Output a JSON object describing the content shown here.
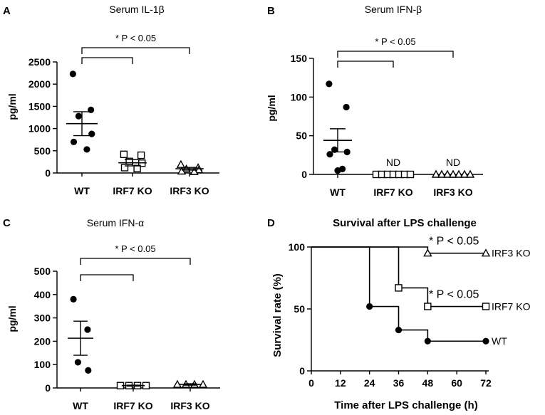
{
  "chart_data": [
    {
      "panel": "A",
      "type": "scatter",
      "title": "Serum IL-1β",
      "ylabel": "pg/ml",
      "ylim": [
        0,
        2500
      ],
      "yticks": [
        0,
        500,
        1000,
        1500,
        2000,
        2500
      ],
      "categories": [
        "WT",
        "IRF7 KO",
        "IRF3 KO"
      ],
      "markers": [
        "filled-circle",
        "open-square",
        "open-triangle"
      ],
      "points": [
        [
          2230,
          1420,
          1280,
          880,
          700,
          530
        ],
        [
          420,
          400,
          260,
          220,
          120,
          100
        ],
        [
          190,
          120,
          90,
          70,
          40,
          30
        ]
      ],
      "mean": [
        1110,
        230,
        95
      ],
      "sem": [
        270,
        70,
        30
      ],
      "annotations": [
        {
          "text": "* P < 0.05",
          "from": 0,
          "to": 2,
          "level": "upper"
        },
        {
          "text": "",
          "from": 0,
          "to": 1,
          "level": "lower"
        }
      ]
    },
    {
      "panel": "B",
      "type": "scatter",
      "title": "Serum IFN-β",
      "ylabel": "pg/ml",
      "ylim": [
        0,
        150
      ],
      "yticks": [
        0,
        50,
        100,
        150
      ],
      "categories": [
        "WT",
        "IRF7 KO",
        "IRF3 KO"
      ],
      "markers": [
        "filled-circle",
        "open-square",
        "open-triangle"
      ],
      "points": [
        [
          117,
          87,
          32,
          29,
          26,
          7,
          5
        ],
        [
          0,
          0,
          0,
          0,
          0,
          0,
          0
        ],
        [
          0,
          0,
          0,
          0,
          0,
          0,
          0
        ]
      ],
      "mean": [
        44,
        null,
        null
      ],
      "sem": [
        15,
        null,
        null
      ],
      "value_labels": [
        "",
        "ND",
        "ND"
      ],
      "annotations": [
        {
          "text": "* P < 0.05",
          "from": 0,
          "to": 2,
          "level": "upper"
        },
        {
          "text": "",
          "from": 0,
          "to": 1,
          "level": "lower"
        }
      ]
    },
    {
      "panel": "C",
      "type": "scatter",
      "title": "Serum IFN-α",
      "ylabel": "pg/ml",
      "ylim": [
        0,
        500
      ],
      "yticks": [
        0,
        100,
        200,
        300,
        400,
        500
      ],
      "categories": [
        "WT",
        "IRF7 KO",
        "IRF3 KO"
      ],
      "markers": [
        "filled-circle",
        "open-square",
        "open-triangle"
      ],
      "points": [
        [
          380,
          250,
          110,
          75
        ],
        [
          10,
          10,
          10,
          10
        ],
        [
          15,
          15,
          15,
          15
        ]
      ],
      "mean": [
        213,
        10,
        15
      ],
      "sem": [
        73,
        2,
        3
      ],
      "annotations": [
        {
          "text": "* P < 0.05",
          "from": 0,
          "to": 2,
          "level": "upper"
        },
        {
          "text": "",
          "from": 0,
          "to": 1,
          "level": "lower"
        }
      ]
    },
    {
      "panel": "D",
      "type": "line",
      "title": "Survival after LPS challenge",
      "xlabel": "Time after LPS challenge (h)",
      "ylabel": "Survival rate (%)",
      "xlim": [
        0,
        72
      ],
      "ylim": [
        0,
        100
      ],
      "xticks": [
        0,
        12,
        24,
        36,
        48,
        60,
        72
      ],
      "yticks": [
        0,
        50,
        100
      ],
      "series": [
        {
          "name": "IRF3 KO",
          "marker": "open-triangle",
          "steps": [
            [
              0,
              100
            ],
            [
              48,
              95
            ],
            [
              72,
              95
            ]
          ]
        },
        {
          "name": "IRF7 KO",
          "marker": "open-square",
          "steps": [
            [
              0,
              100
            ],
            [
              36,
              67
            ],
            [
              48,
              52
            ],
            [
              72,
              52
            ]
          ]
        },
        {
          "name": "WT",
          "marker": "filled-circle",
          "steps": [
            [
              0,
              100
            ],
            [
              24,
              52
            ],
            [
              36,
              33
            ],
            [
              48,
              24
            ],
            [
              72,
              24
            ]
          ]
        }
      ],
      "annotations": [
        {
          "text": "* P < 0.05",
          "series": "IRF3 KO"
        },
        {
          "text": "* P < 0.05",
          "series": "IRF7 KO"
        }
      ]
    }
  ],
  "panel_labels": [
    "A",
    "B",
    "C",
    "D"
  ]
}
